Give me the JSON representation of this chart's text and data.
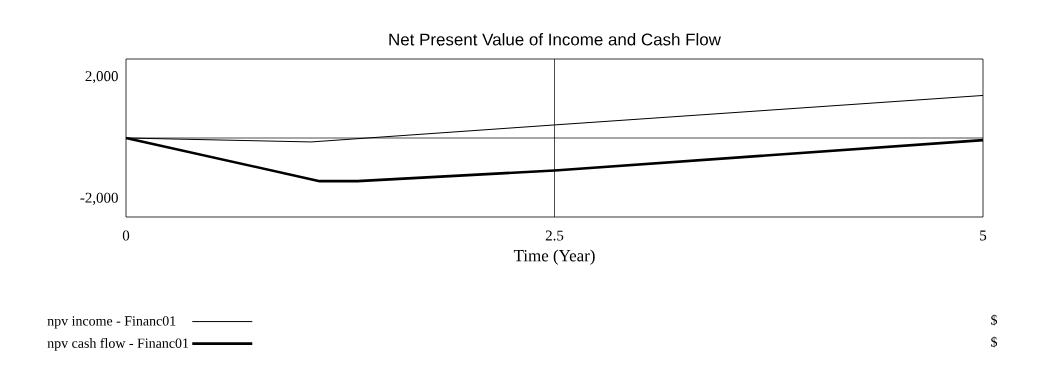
{
  "chart_data": {
    "type": "line",
    "title": "Net Present Value of Income and Cash Flow",
    "xlabel": "Time (Year)",
    "series": [
      {
        "name": "npv income - Financ01",
        "color": "#000000",
        "x": [
          0,
          1.08,
          2.5,
          5
        ],
        "values": [
          0,
          -130,
          430,
          1400
        ]
      },
      {
        "name": "npv cash flow - Financ01",
        "color": "#000000",
        "x": [
          0,
          1.13,
          1.35,
          2.5,
          5
        ],
        "values": [
          0,
          -1420,
          -1420,
          -1070,
          -70
        ]
      }
    ],
    "xlim": [
      0,
      5
    ],
    "xticks": [
      0,
      2.5,
      5
    ],
    "ylim": [
      -2600,
      2600
    ],
    "yticks": [
      {
        "value": -2000,
        "label": "-2,000"
      },
      {
        "value": 2000,
        "label": "2,000"
      }
    ],
    "ref_lines": [
      {
        "axis": "x",
        "value": 2.5
      },
      {
        "axis": "y",
        "value": 0
      }
    ],
    "legend": "bottom",
    "line_style": "solid",
    "annotations": [
      "$",
      "$"
    ]
  }
}
